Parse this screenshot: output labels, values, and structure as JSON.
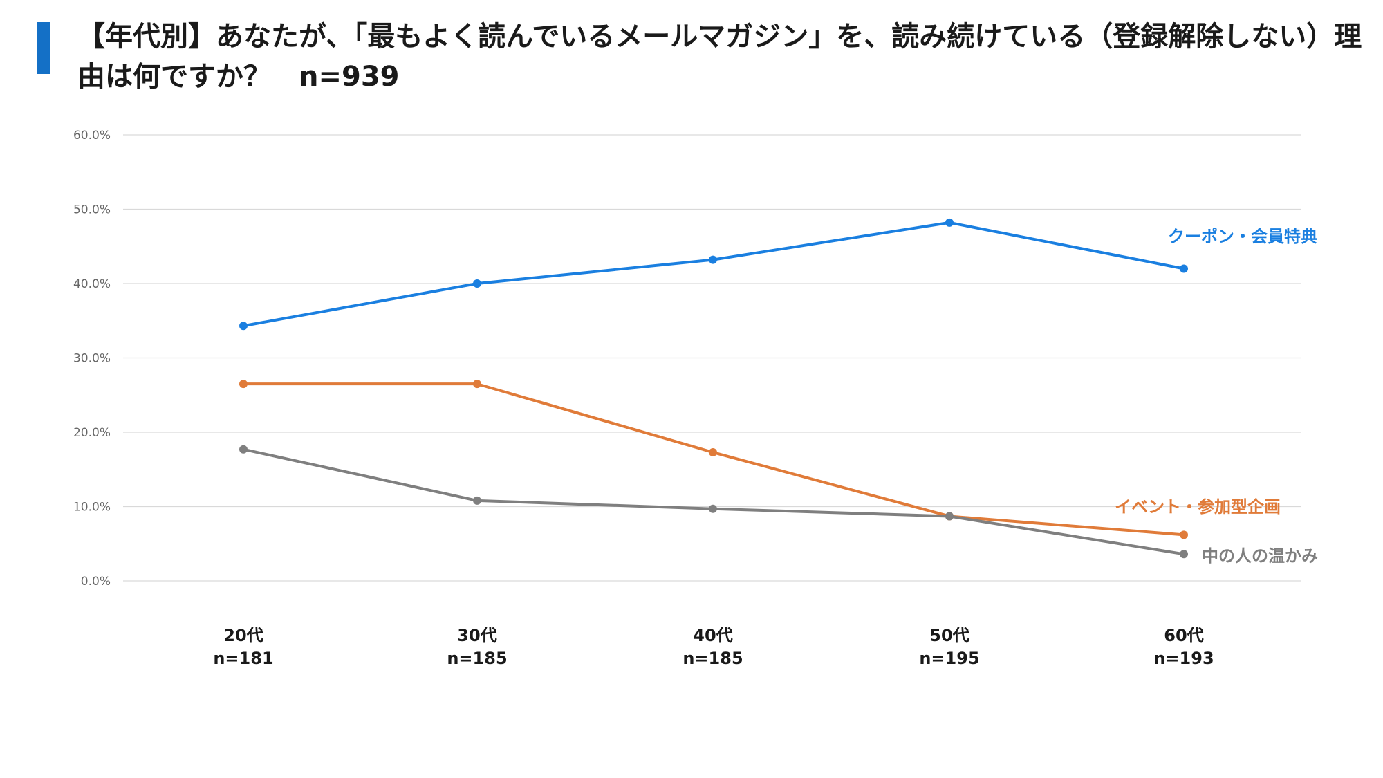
{
  "title": "【年代別】あなたが、「最もよく読んでいるメールマガジン」を、読み続けている（登録解除しない）理由は何ですか？　n=939",
  "chart_data": {
    "type": "line",
    "categories": [
      "20代",
      "30代",
      "40代",
      "50代",
      "60代"
    ],
    "category_sublabels": [
      "n=181",
      "n=185",
      "n=185",
      "n=195",
      "n=193"
    ],
    "ylim": [
      0,
      60
    ],
    "yticks": [
      0,
      10,
      20,
      30,
      40,
      50,
      60
    ],
    "ytick_labels": [
      "0.0%",
      "10.0%",
      "20.0%",
      "30.0%",
      "40.0%",
      "50.0%",
      "60.0%"
    ],
    "grid": true,
    "legend": "inline-right",
    "series": [
      {
        "name": "クーポン・会員特典",
        "color": "#1a7fe0",
        "values": [
          34.3,
          40.0,
          43.2,
          48.2,
          42.0
        ]
      },
      {
        "name": "イベント・参加型企画",
        "color": "#e07b39",
        "values": [
          26.5,
          26.5,
          17.3,
          8.7,
          6.2
        ]
      },
      {
        "name": "中の人の温かみ",
        "color": "#7f7f7f",
        "values": [
          17.7,
          10.8,
          9.7,
          8.7,
          3.6
        ]
      }
    ]
  }
}
